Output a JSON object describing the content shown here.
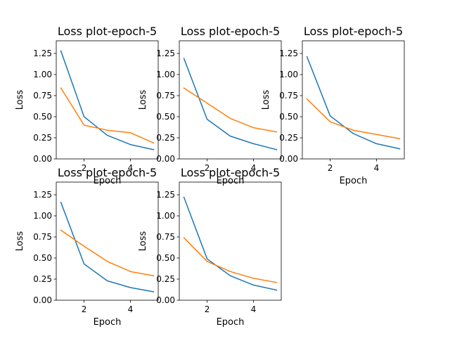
{
  "chart_data": [
    {
      "type": "line",
      "title": "Loss plot-epoch-5",
      "xlabel": "Epoch",
      "ylabel": "Loss",
      "x": [
        1,
        2,
        3,
        4,
        5
      ],
      "xlim": [
        0.8,
        5.2
      ],
      "ylim": [
        0,
        1.4
      ],
      "xticks": [
        2,
        4
      ],
      "yticks": [
        "0.00",
        "0.25",
        "0.50",
        "0.75",
        "1.00",
        "1.25"
      ],
      "grid": false,
      "series": [
        {
          "color": "#1f77b4",
          "values": [
            1.28,
            0.5,
            0.28,
            0.17,
            0.11
          ]
        },
        {
          "color": "#ff7f0e",
          "values": [
            0.84,
            0.4,
            0.34,
            0.31,
            0.19
          ]
        }
      ]
    },
    {
      "type": "line",
      "title": "Loss plot-epoch-5",
      "xlabel": "Epoch",
      "ylabel": "Loss",
      "x": [
        1,
        2,
        3,
        4,
        5
      ],
      "xlim": [
        0.8,
        5.2
      ],
      "ylim": [
        0,
        1.4
      ],
      "xticks": [
        2,
        4
      ],
      "yticks": [
        "0.00",
        "0.25",
        "0.50",
        "0.75",
        "1.00",
        "1.25"
      ],
      "grid": false,
      "series": [
        {
          "color": "#1f77b4",
          "values": [
            1.19,
            0.47,
            0.27,
            0.18,
            0.11
          ]
        },
        {
          "color": "#ff7f0e",
          "values": [
            0.84,
            0.66,
            0.48,
            0.37,
            0.32
          ]
        }
      ]
    },
    {
      "type": "line",
      "title": "Loss plot-epoch-5",
      "xlabel": "Epoch",
      "ylabel": "Loss",
      "x": [
        1,
        2,
        3,
        4,
        5
      ],
      "xlim": [
        0.8,
        5.2
      ],
      "ylim": [
        0,
        1.4
      ],
      "xticks": [
        2,
        4
      ],
      "yticks": [
        "0.00",
        "0.25",
        "0.50",
        "0.75",
        "1.00",
        "1.25"
      ],
      "grid": false,
      "series": [
        {
          "color": "#1f77b4",
          "values": [
            1.21,
            0.51,
            0.3,
            0.18,
            0.12
          ]
        },
        {
          "color": "#ff7f0e",
          "values": [
            0.71,
            0.44,
            0.34,
            0.29,
            0.24
          ]
        }
      ]
    },
    {
      "type": "line",
      "title": "Loss plot-epoch-5",
      "xlabel": "Epoch",
      "ylabel": "Loss",
      "x": [
        1,
        2,
        3,
        4,
        5
      ],
      "xlim": [
        0.8,
        5.2
      ],
      "ylim": [
        0,
        1.4
      ],
      "xticks": [
        2,
        4
      ],
      "yticks": [
        "0.00",
        "0.25",
        "0.50",
        "0.75",
        "1.00",
        "1.25"
      ],
      "grid": false,
      "series": [
        {
          "color": "#1f77b4",
          "values": [
            1.16,
            0.43,
            0.23,
            0.15,
            0.1
          ]
        },
        {
          "color": "#ff7f0e",
          "values": [
            0.83,
            0.64,
            0.46,
            0.34,
            0.29
          ]
        }
      ]
    },
    {
      "type": "line",
      "title": "Loss plot-epoch-5",
      "xlabel": "Epoch",
      "ylabel": "Loss",
      "x": [
        1,
        2,
        3,
        4,
        5
      ],
      "xlim": [
        0.8,
        5.2
      ],
      "ylim": [
        0,
        1.4
      ],
      "xticks": [
        2,
        4
      ],
      "yticks": [
        "0.00",
        "0.25",
        "0.50",
        "0.75",
        "1.00",
        "1.25"
      ],
      "grid": false,
      "series": [
        {
          "color": "#1f77b4",
          "values": [
            1.22,
            0.49,
            0.29,
            0.18,
            0.12
          ]
        },
        {
          "color": "#ff7f0e",
          "values": [
            0.74,
            0.46,
            0.34,
            0.26,
            0.21
          ]
        }
      ]
    }
  ]
}
